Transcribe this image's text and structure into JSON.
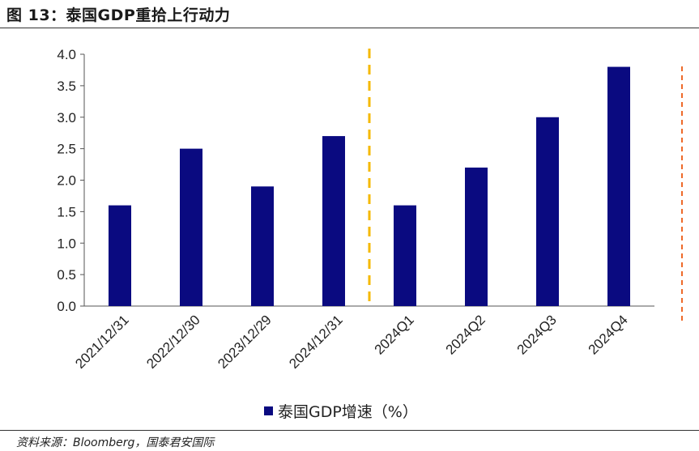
{
  "header": {
    "title": "图 13：泰国GDP重拾上行动力"
  },
  "footer": {
    "source": "资料来源：Bloomberg，国泰君安国际"
  },
  "chart_data": {
    "type": "bar",
    "categories": [
      "2021/12/31",
      "2022/12/30",
      "2023/12/29",
      "2024/12/31",
      "2024Q1",
      "2024Q2",
      "2024Q3",
      "2024Q4"
    ],
    "series": [
      {
        "name": "泰国GDP增速（%）",
        "values": [
          1.6,
          2.5,
          1.9,
          2.7,
          1.6,
          2.2,
          3.0,
          3.8
        ],
        "color": "#0a0a80"
      }
    ],
    "ylim": [
      0,
      4.0
    ],
    "yticks": [
      "0.0",
      "0.5",
      "1.0",
      "1.5",
      "2.0",
      "2.5",
      "3.0",
      "3.5",
      "4.0"
    ],
    "xlabel": "",
    "ylabel": "",
    "grid": false,
    "legend_position": "bottom",
    "separator_colors": [
      "#f5b800",
      "#ee6a2a"
    ]
  }
}
